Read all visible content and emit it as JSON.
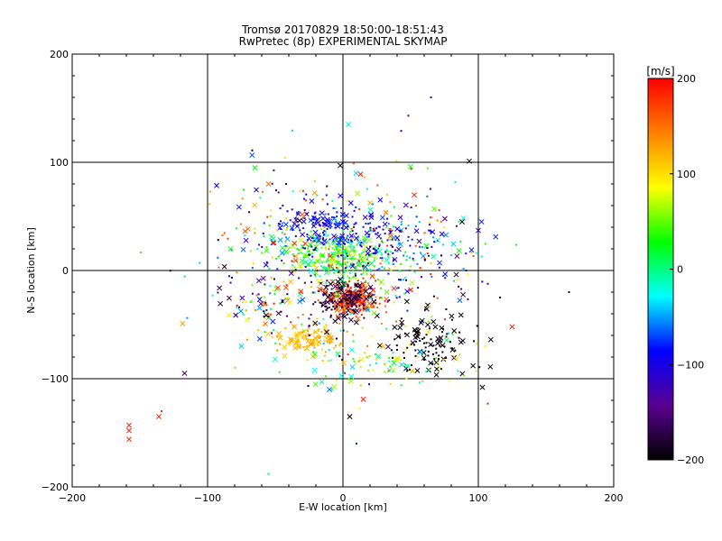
{
  "chart_data": {
    "type": "scatter",
    "title": "Tromsø 20170829 18:50:00-18:51:43",
    "subtitle": "RwPretec (8p) EXPERIMENTAL SKYMAP",
    "xlabel": "E-W location [km]",
    "ylabel": "N-S location [km]",
    "xlim": [
      -200,
      200
    ],
    "ylim": [
      -200,
      200
    ],
    "xticks": [
      -200,
      -100,
      0,
      100,
      200
    ],
    "yticks": [
      -200,
      -100,
      0,
      100,
      200
    ],
    "xtick_labels": [
      "−200",
      "−100",
      "0",
      "100",
      "200"
    ],
    "ytick_labels": [
      "−200",
      "−100",
      "0",
      "100",
      "200"
    ],
    "grid_lines_x": [
      -100,
      0,
      100
    ],
    "grid_lines_y": [
      -100,
      0,
      100
    ],
    "marker_types": [
      "dot",
      "cross"
    ],
    "colorbar": {
      "label": "[m/s]",
      "range": [
        -200,
        200
      ],
      "ticks": [
        200,
        100,
        0,
        -100,
        -200
      ],
      "tick_labels": [
        "200",
        "100",
        "0",
        "−100",
        "−200"
      ],
      "colormap": [
        "#000000",
        "#5a0090",
        "#0000ff",
        "#00ffff",
        "#00ff00",
        "#ffff00",
        "#ff8000",
        "#ff0000"
      ]
    },
    "points": [
      {
        "x": -158,
        "y": -143,
        "v": 185,
        "m": "x"
      },
      {
        "x": -158,
        "y": -148,
        "v": 185,
        "m": "x"
      },
      {
        "x": -158,
        "y": -156,
        "v": 185,
        "m": "x"
      },
      {
        "x": -136,
        "y": -135,
        "v": 180,
        "m": "x"
      },
      {
        "x": -134,
        "y": -130,
        "v": 180,
        "m": "d"
      },
      {
        "x": -117,
        "y": -95,
        "v": -150,
        "m": "x"
      },
      {
        "x": -55,
        "y": -188,
        "v": 20,
        "m": "d"
      },
      {
        "x": 10,
        "y": -160,
        "v": -80,
        "m": "d"
      },
      {
        "x": 4,
        "y": 135,
        "v": -20,
        "m": "x"
      },
      {
        "x": 65,
        "y": 160,
        "v": -120,
        "m": "d"
      },
      {
        "x": 43,
        "y": 129,
        "v": -90,
        "m": "d"
      },
      {
        "x": -67,
        "y": 111,
        "v": -200,
        "m": "d"
      },
      {
        "x": 125,
        "y": -52,
        "v": 190,
        "m": "x"
      },
      {
        "x": 167,
        "y": -20,
        "v": -200,
        "m": "d"
      },
      {
        "x": 103,
        "y": -108,
        "v": -200,
        "m": "x"
      },
      {
        "x": 107,
        "y": -123,
        "v": 190,
        "m": "d"
      },
      {
        "x": 100,
        "y": 37,
        "v": -120,
        "m": "x"
      },
      {
        "x": 95,
        "y": 19,
        "v": -80,
        "m": "x"
      },
      {
        "x": 88,
        "y": 45,
        "v": -200,
        "m": "x"
      },
      {
        "x": 15,
        "y": -119,
        "v": 190,
        "m": "x"
      },
      {
        "x": 5,
        "y": -135,
        "v": -200,
        "m": "x"
      },
      {
        "x": -10,
        "y": -110,
        "v": -60,
        "m": "x"
      },
      {
        "x": 13,
        "y": 89,
        "v": 190,
        "m": "x"
      },
      {
        "x": 50,
        "y": 96,
        "v": 30,
        "m": "x"
      },
      {
        "x": -65,
        "y": 95,
        "v": 30,
        "m": "x"
      },
      {
        "x": -2,
        "y": 97,
        "v": -200,
        "m": "x"
      },
      {
        "x": -55,
        "y": 80,
        "v": 150,
        "m": "x"
      },
      {
        "x": -75,
        "y": -70,
        "v": -40,
        "m": "x"
      },
      {
        "x": -50,
        "y": -82,
        "v": -20,
        "m": "x"
      }
    ],
    "clusters": [
      {
        "cx": 8,
        "cy": -25,
        "sx": 10,
        "sy": 8,
        "n": 220,
        "vmin": 140,
        "vmax": 200,
        "xfrac": 0.35
      },
      {
        "cx": 0,
        "cy": -25,
        "sx": 12,
        "sy": 10,
        "n": 140,
        "vmin": -200,
        "vmax": -160,
        "xfrac": 0.35
      },
      {
        "cx": 0,
        "cy": 12,
        "sx": 22,
        "sy": 12,
        "n": 300,
        "vmin": -20,
        "vmax": 80,
        "xfrac": 0.2
      },
      {
        "cx": -15,
        "cy": 42,
        "sx": 18,
        "sy": 10,
        "n": 140,
        "vmin": -120,
        "vmax": -70,
        "xfrac": 0.3
      },
      {
        "cx": 35,
        "cy": 28,
        "sx": 22,
        "sy": 15,
        "n": 120,
        "vmin": -120,
        "vmax": -40,
        "xfrac": 0.2
      },
      {
        "cx": 65,
        "cy": -65,
        "sx": 16,
        "sy": 14,
        "n": 120,
        "vmin": -200,
        "vmax": -190,
        "xfrac": 0.35
      },
      {
        "cx": -25,
        "cy": -62,
        "sx": 14,
        "sy": 7,
        "n": 110,
        "vmin": 100,
        "vmax": 140,
        "xfrac": 0.3
      },
      {
        "cx": 30,
        "cy": -85,
        "sx": 30,
        "sy": 10,
        "n": 90,
        "vmin": -40,
        "vmax": 120,
        "xfrac": 0.2
      },
      {
        "cx": -60,
        "cy": -30,
        "sx": 15,
        "sy": 12,
        "n": 70,
        "vmin": -200,
        "vmax": 200,
        "xfrac": 0.4
      },
      {
        "cx": 0,
        "cy": 0,
        "sx": 45,
        "sy": 45,
        "n": 260,
        "vmin": -200,
        "vmax": 200,
        "xfrac": 0.15
      },
      {
        "cx": -40,
        "cy": 35,
        "sx": 30,
        "sy": 30,
        "n": 90,
        "vmin": -200,
        "vmax": 200,
        "xfrac": 0.3
      },
      {
        "cx": 60,
        "cy": 25,
        "sx": 25,
        "sy": 30,
        "n": 70,
        "vmin": -200,
        "vmax": 200,
        "xfrac": 0.3
      }
    ]
  }
}
